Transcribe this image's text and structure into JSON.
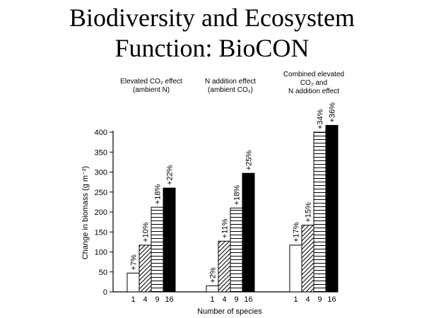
{
  "slide": {
    "title_line1": "Biodiversity and Ecosystem",
    "title_line2": "Function: BioCON"
  },
  "chart_data": {
    "type": "bar",
    "ylabel": "Change in biomass (g m⁻²)",
    "xlabel": "Number of species",
    "ylim": [
      0,
      400
    ],
    "yticks": [
      0,
      50,
      100,
      150,
      200,
      250,
      300,
      350,
      400
    ],
    "categories": [
      "1",
      "4",
      "9",
      "16"
    ],
    "fills": [
      "white",
      "diagonal-hatch",
      "horizontal-hatch",
      "black"
    ],
    "groups": [
      {
        "label_lines": [
          "Elevated CO₂ effect",
          "(ambient N)"
        ],
        "values": [
          47,
          117,
          212,
          260
        ],
        "labels": [
          "+7%",
          "+10%",
          "+18%",
          "+22%"
        ]
      },
      {
        "label_lines": [
          "N addition effect",
          "(ambient CO₂)"
        ],
        "values": [
          15,
          127,
          210,
          297
        ],
        "labels": [
          "+2%",
          "+11%",
          "+18%",
          "+25%"
        ]
      },
      {
        "label_lines": [
          "Combined elevated",
          "CO₂ and",
          "N addition effect"
        ],
        "values": [
          117,
          167,
          400,
          417
        ],
        "labels": [
          "+17%",
          "+15%",
          "+34%",
          "+36%"
        ]
      }
    ]
  }
}
